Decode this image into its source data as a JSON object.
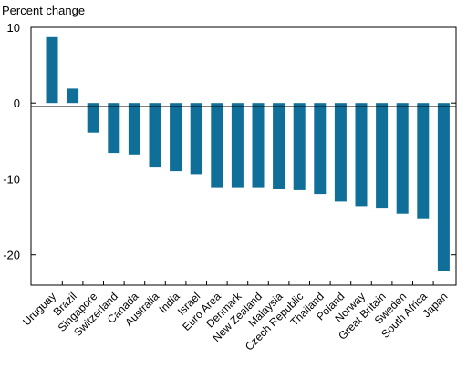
{
  "chart_data": {
    "type": "bar",
    "ylabel": "Percent change",
    "ylim": [
      -24,
      10
    ],
    "yticks": [
      10,
      0,
      -10,
      -20
    ],
    "grid": false,
    "legend": "none",
    "bar_color": "#0f6f98",
    "categories": [
      "Uruguay",
      "Brazil",
      "Singapore",
      "Switzerland",
      "Canada",
      "Australia",
      "India",
      "Israel",
      "Euro Area",
      "Denmark",
      "New Zealand",
      "Malaysia",
      "Czech Republic",
      "Thailand",
      "Poland",
      "Norway",
      "Great Britain",
      "Sweden",
      "South Africa",
      "Japan"
    ],
    "values": [
      8.7,
      1.9,
      -3.9,
      -6.6,
      -6.8,
      -8.4,
      -9.0,
      -9.4,
      -11.1,
      -11.1,
      -11.1,
      -11.3,
      -11.5,
      -12.0,
      -13.0,
      -13.6,
      -13.8,
      -14.6,
      -15.2,
      -22.1
    ]
  }
}
